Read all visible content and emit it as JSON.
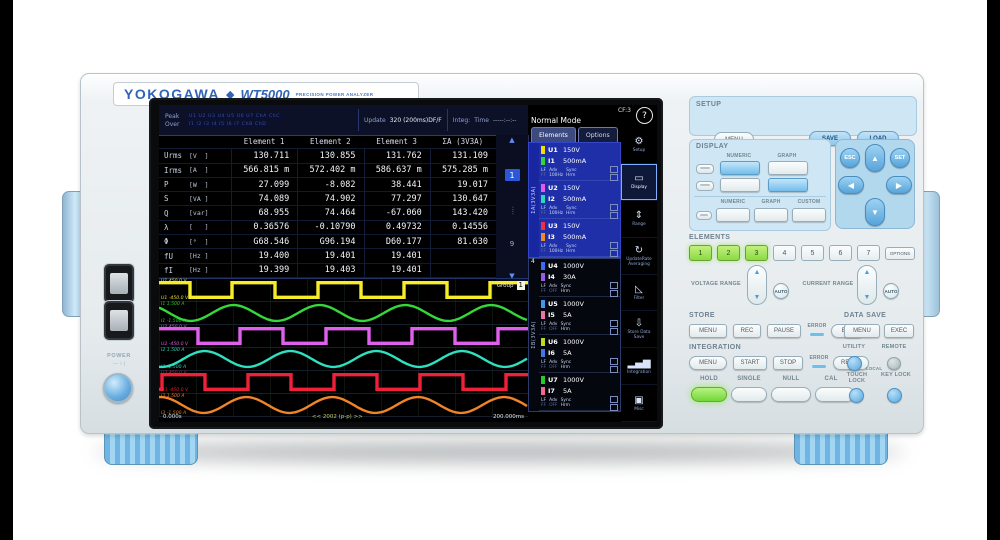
{
  "brand": {
    "logo": "YOKOGAWA",
    "diamond": "◆",
    "model": "WT5000",
    "tagline": "PRECISION POWER ANALYZER"
  },
  "power": {
    "label": "POWER",
    "symbols": "— ○ |"
  },
  "screen": {
    "status": {
      "peak_label": "Peak",
      "peak_channels": "U1 U2 U3 U4 U5 U6 U7 ChA ChC",
      "over_label": "Over",
      "over_channels": "I1 I2 I3 I4 I5 I6 I7 ChB ChD",
      "update_label": "Update",
      "update_value": "320 (200ms)DF/F",
      "integ_label": "Integ:",
      "time_label": "Time",
      "time_value": "-----:--:--",
      "cf": "CF:3",
      "help": "?",
      "mode": "Normal Mode"
    },
    "table": {
      "headers": [
        "Element 1",
        "Element 2",
        "Element 3",
        "ΣA (3V3A)"
      ],
      "rows": [
        {
          "name": "Urms",
          "unit": "[V  ]",
          "v": [
            "130.711",
            "130.855",
            "131.762",
            "131.109"
          ]
        },
        {
          "name": "Irms",
          "unit": "[A  ]",
          "v": [
            "566.815 m",
            "572.402 m",
            "586.637 m",
            "575.285 m"
          ]
        },
        {
          "name": "P",
          "unit": "[W  ]",
          "v": [
            "27.099",
            "-8.082",
            "38.441",
            "19.017"
          ]
        },
        {
          "name": "S",
          "unit": "[VA ]",
          "v": [
            "74.089",
            "74.902",
            "77.297",
            "130.647"
          ]
        },
        {
          "name": "Q",
          "unit": "[var]",
          "v": [
            "68.955",
            "74.464",
            "-67.060",
            "143.420"
          ]
        },
        {
          "name": "λ",
          "unit": "[   ]",
          "v": [
            "0.36576",
            "-0.10790",
            "0.49732",
            "0.14556"
          ]
        },
        {
          "name": "Φ",
          "unit": "[°  ]",
          "v": [
            "G68.546",
            "G96.194",
            "D60.177",
            "81.630"
          ]
        },
        {
          "name": "fU",
          "unit": "[Hz ]",
          "v": [
            "19.400",
            "19.401",
            "19.401",
            ""
          ]
        },
        {
          "name": "fI",
          "unit": "[Hz ]",
          "v": [
            "19.399",
            "19.403",
            "19.401",
            ""
          ]
        }
      ]
    },
    "pager": {
      "up": "▲",
      "current": "1",
      "dots": "····",
      "last": "9",
      "down": "▼"
    },
    "waveform": {
      "cycles": 4.3,
      "group_label": "Group",
      "group_value": "1",
      "t_start": "0.000s",
      "t_info": "<< 2002 (p-p) >>",
      "t_end": "200.000ms",
      "tracks": [
        {
          "ch": "U1",
          "top": "450.0 V",
          "bottom": "-450.0 V",
          "type": "square",
          "color": "#f5ec2a",
          "phase": 0.15
        },
        {
          "ch": "I1",
          "top": "1.500 A",
          "bottom": "-1.500 A",
          "type": "sine",
          "color": "#35d83a",
          "phase": 0.38
        },
        {
          "ch": "U2",
          "top": "450.0 V",
          "bottom": "-450.0 V",
          "type": "square",
          "color": "#e060ee",
          "phase": 0.057
        },
        {
          "ch": "I2",
          "top": "1.500 A",
          "bottom": "-1.500 A",
          "type": "sine",
          "color": "#2ee0c0",
          "phase": 0.718
        },
        {
          "ch": "U3",
          "top": "450.0 V",
          "bottom": "-450.0 V",
          "type": "square",
          "color": "#f02038",
          "phase": 0.968
        },
        {
          "ch": "I3",
          "top": "1.500 A",
          "bottom": "-1.500 A",
          "type": "sine",
          "color": "#f08428",
          "phase": 0.231
        }
      ]
    },
    "elements_panel": {
      "tab_elements": "Elements",
      "tab_options": "Options",
      "group_a": "ΣA(3V3A)",
      "group_b": "ΣB(3V3A)",
      "marker4": "4",
      "lf": "LF",
      "ff": "FF",
      "adv_label": "Adv",
      "sync_label": "Sync",
      "hrm_label": "Hrm",
      "blocks": [
        {
          "u": "U1",
          "ur": "150V",
          "uc": "#f2df00",
          "i": "I1",
          "ir": "500mA",
          "ic": "#35d43a",
          "adv": "100Hz"
        },
        {
          "u": "U2",
          "ur": "150V",
          "uc": "#e55ae8",
          "i": "I2",
          "ir": "500mA",
          "ic": "#2bd8b8",
          "adv": "100Hz"
        },
        {
          "u": "U3",
          "ur": "150V",
          "uc": "#f03040",
          "i": "I3",
          "ir": "500mA",
          "ic": "#f08a28",
          "adv": "100Hz"
        },
        {
          "u": "U4",
          "ur": "1000V",
          "uc": "#3a6cf0",
          "i": "I4",
          "ir": "30A",
          "ic": "#9a5ae8",
          "adv": "OFF"
        },
        {
          "u": "U5",
          "ur": "1000V",
          "uc": "#3a9af0",
          "i": "I5",
          "ir": "5A",
          "ic": "#f070a8",
          "adv": "OFF"
        },
        {
          "u": "U6",
          "ur": "1000V",
          "uc": "#b8dc20",
          "i": "I6",
          "ir": "5A",
          "ic": "#3a7ae8",
          "adv": "OFF"
        },
        {
          "u": "U7",
          "ur": "1000V",
          "uc": "#2ac82a",
          "i": "I7",
          "ir": "5A",
          "ic": "#f06890",
          "adv": "OFF"
        }
      ]
    },
    "sidebar": {
      "items": [
        {
          "glyph": "⚙",
          "label": "Setup"
        },
        {
          "glyph": "▭",
          "label": "Display"
        },
        {
          "glyph": "⇕",
          "label": "Range"
        },
        {
          "glyph": "↻",
          "label": "UpdateRate Averaging"
        },
        {
          "glyph": "◺",
          "label": "Filter"
        },
        {
          "glyph": "⇩",
          "label": "Store Data Save"
        },
        {
          "glyph": "▂▄▆",
          "label": "Integration"
        },
        {
          "glyph": "▣",
          "label": "Misc"
        }
      ]
    }
  },
  "panel": {
    "setup": {
      "title": "SETUP",
      "menu": "MENU",
      "save": "SAVE",
      "load": "LOAD"
    },
    "display": {
      "title": "DISPLAY",
      "row1_labels": [
        "NUMERIC",
        "GRAPH"
      ],
      "row3_labels": [
        "NUMERIC",
        "GRAPH",
        "CUSTOM"
      ]
    },
    "nav": {
      "esc": "ESC",
      "set": "SET",
      "up": "▲",
      "down": "▼",
      "left": "◀",
      "right": "▶"
    },
    "elements": {
      "title": "ELEMENTS",
      "keys": [
        "1",
        "2",
        "3",
        "4",
        "5",
        "6",
        "7"
      ],
      "options": "OPTIONS"
    },
    "voltage_range": "VOLTAGE RANGE",
    "current_range": "CURRENT RANGE",
    "auto": "AUTO",
    "up_glyph": "▲",
    "down_glyph": "▼",
    "store": {
      "title": "STORE",
      "menu": "MENU",
      "rec": "REC",
      "pause": "PAUSE",
      "error": "ERROR",
      "end": "END"
    },
    "data_save": {
      "title": "DATA SAVE",
      "menu": "MENU",
      "exec": "EXEC"
    },
    "integration": {
      "title": "INTEGRATION",
      "menu": "MENU",
      "start": "START",
      "stop": "STOP",
      "error": "ERROR",
      "reset": "RESET"
    },
    "utility": "UTILITY",
    "remote": "REMOTE",
    "local": "LOCAL",
    "hold": "HOLD",
    "single": "SINGLE",
    "null_key": "NULL",
    "cal": "CAL",
    "touch_lock": "TOUCH LOCK",
    "key_lock": "KEY LOCK"
  }
}
